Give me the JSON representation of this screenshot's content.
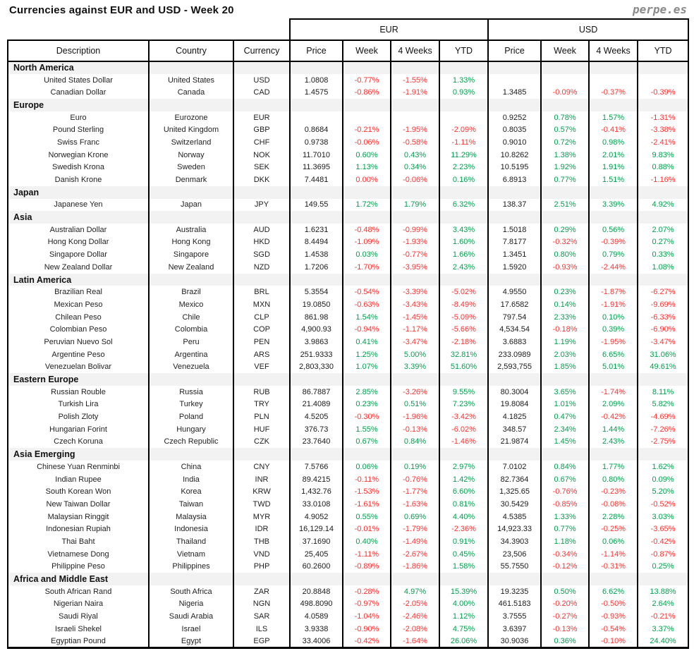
{
  "page": {
    "title": "Currencies against EUR and USD - Week 20",
    "logo": "perpe.es"
  },
  "colors": {
    "positive": "#00A04E",
    "negative": "#FF3232",
    "section_background": "#F2F2F2",
    "border": "#000000",
    "logo_gray": "#8a8a8a"
  },
  "table": {
    "group_headers": {
      "eur": "EUR",
      "usd": "USD"
    },
    "columns": {
      "description": "Description",
      "country": "Country",
      "currency": "Currency"
    },
    "sub_columns": [
      "Price",
      "Week",
      "4 Weeks",
      "YTD"
    ],
    "sections": [
      {
        "name": "North America",
        "rows": [
          {
            "description": "United States Dollar",
            "country": "United States",
            "currency": "USD",
            "eur": [
              "1.0808",
              "-0.77%",
              "-1.55%",
              "1.33%"
            ],
            "usd": [
              "",
              "",
              "",
              ""
            ]
          },
          {
            "description": "Canadian Dollar",
            "country": "Canada",
            "currency": "CAD",
            "eur": [
              "1.4575",
              "-0.86%",
              "-1.91%",
              "0.93%"
            ],
            "usd": [
              "1.3485",
              "-0.09%",
              "-0.37%",
              "-0.39%"
            ]
          }
        ]
      },
      {
        "name": "Europe",
        "rows": [
          {
            "description": "Euro",
            "country": "Eurozone",
            "currency": "EUR",
            "eur": [
              "",
              "",
              "",
              ""
            ],
            "usd": [
              "0.9252",
              "0.78%",
              "1.57%",
              "-1.31%"
            ]
          },
          {
            "description": "Pound Sterling",
            "country": "United Kingdom",
            "currency": "GBP",
            "eur": [
              "0.8684",
              "-0.21%",
              "-1.95%",
              "-2.09%"
            ],
            "usd": [
              "0.8035",
              "0.57%",
              "-0.41%",
              "-3.38%"
            ]
          },
          {
            "description": "Swiss Franc",
            "country": "Switzerland",
            "currency": "CHF",
            "eur": [
              "0.9738",
              "-0.06%",
              "-0.58%",
              "-1.11%"
            ],
            "usd": [
              "0.9010",
              "0.72%",
              "0.98%",
              "-2.41%"
            ]
          },
          {
            "description": "Norwegian Krone",
            "country": "Norway",
            "currency": "NOK",
            "eur": [
              "11.7010",
              "0.60%",
              "0.43%",
              "11.29%"
            ],
            "usd": [
              "10.8262",
              "1.38%",
              "2.01%",
              "9.83%"
            ]
          },
          {
            "description": "Swedish Krona",
            "country": "Sweden",
            "currency": "SEK",
            "eur": [
              "11.3695",
              "1.13%",
              "0.34%",
              "2.23%"
            ],
            "usd": [
              "10.5195",
              "1.92%",
              "1.91%",
              "0.88%"
            ]
          },
          {
            "description": "Danish Krone",
            "country": "Denmark",
            "currency": "DKK",
            "eur": [
              "7.4481",
              "0.00%",
              "-0.06%",
              "0.16%"
            ],
            "usd": [
              "6.8913",
              "0.77%",
              "1.51%",
              "-1.16%"
            ]
          }
        ]
      },
      {
        "name": "Japan",
        "rows": [
          {
            "description": "Japanese Yen",
            "country": "Japan",
            "currency": "JPY",
            "eur": [
              "149.55",
              "1.72%",
              "1.79%",
              "6.32%"
            ],
            "usd": [
              "138.37",
              "2.51%",
              "3.39%",
              "4.92%"
            ]
          }
        ]
      },
      {
        "name": "Asia",
        "rows": [
          {
            "description": "Australian Dollar",
            "country": "Australia",
            "currency": "AUD",
            "eur": [
              "1.6231",
              "-0.48%",
              "-0.99%",
              "3.43%"
            ],
            "usd": [
              "1.5018",
              "0.29%",
              "0.56%",
              "2.07%"
            ]
          },
          {
            "description": "Hong Kong Dollar",
            "country": "Hong Kong",
            "currency": "HKD",
            "eur": [
              "8.4494",
              "-1.09%",
              "-1.93%",
              "1.60%"
            ],
            "usd": [
              "7.8177",
              "-0.32%",
              "-0.39%",
              "0.27%"
            ]
          },
          {
            "description": "Singapore Dollar",
            "country": "Singapore",
            "currency": "SGD",
            "eur": [
              "1.4538",
              "0.03%",
              "-0.77%",
              "1.66%"
            ],
            "usd": [
              "1.3451",
              "0.80%",
              "0.79%",
              "0.33%"
            ]
          },
          {
            "description": "New Zealand Dollar",
            "country": "New Zealand",
            "currency": "NZD",
            "eur": [
              "1.7206",
              "-1.70%",
              "-3.95%",
              "2.43%"
            ],
            "usd": [
              "1.5920",
              "-0.93%",
              "-2.44%",
              "1.08%"
            ]
          }
        ]
      },
      {
        "name": "Latin America",
        "rows": [
          {
            "description": "Brazilian Real",
            "country": "Brazil",
            "currency": "BRL",
            "eur": [
              "5.3554",
              "-0.54%",
              "-3.39%",
              "-5.02%"
            ],
            "usd": [
              "4.9550",
              "0.23%",
              "-1.87%",
              "-6.27%"
            ]
          },
          {
            "description": "Mexican Peso",
            "country": "Mexico",
            "currency": "MXN",
            "eur": [
              "19.0850",
              "-0.63%",
              "-3.43%",
              "-8.49%"
            ],
            "usd": [
              "17.6582",
              "0.14%",
              "-1.91%",
              "-9.69%"
            ]
          },
          {
            "description": "Chilean Peso",
            "country": "Chile",
            "currency": "CLP",
            "eur": [
              "861.98",
              "1.54%",
              "-1.45%",
              "-5.09%"
            ],
            "usd": [
              "797.54",
              "2.33%",
              "0.10%",
              "-6.33%"
            ]
          },
          {
            "description": "Colombian Peso",
            "country": "Colombia",
            "currency": "COP",
            "eur": [
              "4,900.93",
              "-0.94%",
              "-1.17%",
              "-5.66%"
            ],
            "usd": [
              "4,534.54",
              "-0.18%",
              "0.39%",
              "-6.90%"
            ]
          },
          {
            "description": "Peruvian Nuevo Sol",
            "country": "Peru",
            "currency": "PEN",
            "eur": [
              "3.9863",
              "0.41%",
              "-3.47%",
              "-2.18%"
            ],
            "usd": [
              "3.6883",
              "1.19%",
              "-1.95%",
              "-3.47%"
            ]
          },
          {
            "description": "Argentine Peso",
            "country": "Argentina",
            "currency": "ARS",
            "eur": [
              "251.9333",
              "1.25%",
              "5.00%",
              "32.81%"
            ],
            "usd": [
              "233.0989",
              "2.03%",
              "6.65%",
              "31.06%"
            ]
          },
          {
            "description": "Venezuelan Bolivar",
            "country": "Venezuela",
            "currency": "VEF",
            "eur": [
              "2,803,330",
              "1.07%",
              "3.39%",
              "51.60%"
            ],
            "usd": [
              "2,593,755",
              "1.85%",
              "5.01%",
              "49.61%"
            ]
          }
        ]
      },
      {
        "name": "Eastern Europe",
        "rows": [
          {
            "description": "Russian Rouble",
            "country": "Russia",
            "currency": "RUB",
            "eur": [
              "86.7887",
              "2.85%",
              "-3.26%",
              "9.55%"
            ],
            "usd": [
              "80.3004",
              "3.65%",
              "-1.74%",
              "8.11%"
            ]
          },
          {
            "description": "Turkish Lira",
            "country": "Turkey",
            "currency": "TRY",
            "eur": [
              "21.4089",
              "0.23%",
              "0.51%",
              "7.23%"
            ],
            "usd": [
              "19.8084",
              "1.01%",
              "2.09%",
              "5.82%"
            ]
          },
          {
            "description": "Polish Zloty",
            "country": "Poland",
            "currency": "PLN",
            "eur": [
              "4.5205",
              "-0.30%",
              "-1.96%",
              "-3.42%"
            ],
            "usd": [
              "4.1825",
              "0.47%",
              "-0.42%",
              "-4.69%"
            ]
          },
          {
            "description": "Hungarian Forint",
            "country": "Hungary",
            "currency": "HUF",
            "eur": [
              "376.73",
              "1.55%",
              "-0.13%",
              "-6.02%"
            ],
            "usd": [
              "348.57",
              "2.34%",
              "1.44%",
              "-7.26%"
            ]
          },
          {
            "description": "Czech Koruna",
            "country": "Czech Republic",
            "currency": "CZK",
            "eur": [
              "23.7640",
              "0.67%",
              "0.84%",
              "-1.46%"
            ],
            "usd": [
              "21.9874",
              "1.45%",
              "2.43%",
              "-2.75%"
            ]
          }
        ]
      },
      {
        "name": "Asia Emerging",
        "rows": [
          {
            "description": "Chinese Yuan Renminbi",
            "country": "China",
            "currency": "CNY",
            "eur": [
              "7.5766",
              "0.06%",
              "0.19%",
              "2.97%"
            ],
            "usd": [
              "7.0102",
              "0.84%",
              "1.77%",
              "1.62%"
            ]
          },
          {
            "description": "Indian Rupee",
            "country": "India",
            "currency": "INR",
            "eur": [
              "89.4215",
              "-0.11%",
              "-0.76%",
              "1.42%"
            ],
            "usd": [
              "82.7364",
              "0.67%",
              "0.80%",
              "0.09%"
            ]
          },
          {
            "description": "South Korean Won",
            "country": "Korea",
            "currency": "KRW",
            "eur": [
              "1,432.76",
              "-1.53%",
              "-1.77%",
              "6.60%"
            ],
            "usd": [
              "1,325.65",
              "-0.76%",
              "-0.23%",
              "5.20%"
            ]
          },
          {
            "description": "New Taiwan Dollar",
            "country": "Taiwan",
            "currency": "TWD",
            "eur": [
              "33.0108",
              "-1.61%",
              "-1.63%",
              "0.81%"
            ],
            "usd": [
              "30.5429",
              "-0.85%",
              "-0.08%",
              "-0.52%"
            ]
          },
          {
            "description": "Malaysian Ringgit",
            "country": "Malaysia",
            "currency": "MYR",
            "eur": [
              "4.9052",
              "0.55%",
              "0.69%",
              "4.40%"
            ],
            "usd": [
              "4.5385",
              "1.33%",
              "2.28%",
              "3.03%"
            ]
          },
          {
            "description": "Indonesian Rupiah",
            "country": "Indonesia",
            "currency": "IDR",
            "eur": [
              "16,129.14",
              "-0.01%",
              "-1.79%",
              "-2.36%"
            ],
            "usd": [
              "14,923.33",
              "0.77%",
              "-0.25%",
              "-3.65%"
            ]
          },
          {
            "description": "Thai Baht",
            "country": "Thailand",
            "currency": "THB",
            "eur": [
              "37.1690",
              "0.40%",
              "-1.49%",
              "0.91%"
            ],
            "usd": [
              "34.3903",
              "1.18%",
              "0.06%",
              "-0.42%"
            ]
          },
          {
            "description": "Vietnamese Dong",
            "country": "Vietnam",
            "currency": "VND",
            "eur": [
              "25,405",
              "-1.11%",
              "-2.67%",
              "0.45%"
            ],
            "usd": [
              "23,506",
              "-0.34%",
              "-1.14%",
              "-0.87%"
            ]
          },
          {
            "description": "Philippine Peso",
            "country": "Philippines",
            "currency": "PHP",
            "eur": [
              "60.2600",
              "-0.89%",
              "-1.86%",
              "1.58%"
            ],
            "usd": [
              "55.7550",
              "-0.12%",
              "-0.31%",
              "0.25%"
            ]
          }
        ]
      },
      {
        "name": "Africa and Middle East",
        "rows": [
          {
            "description": "South African Rand",
            "country": "South Africa",
            "currency": "ZAR",
            "eur": [
              "20.8848",
              "-0.28%",
              "4.97%",
              "15.39%"
            ],
            "usd": [
              "19.3235",
              "0.50%",
              "6.62%",
              "13.88%"
            ]
          },
          {
            "description": "Nigerian Naira",
            "country": "Nigeria",
            "currency": "NGN",
            "eur": [
              "498.8090",
              "-0.97%",
              "-2.05%",
              "4.00%"
            ],
            "usd": [
              "461.5183",
              "-0.20%",
              "-0.50%",
              "2.64%"
            ]
          },
          {
            "description": "Saudi Riyal",
            "country": "Saudi Arabia",
            "currency": "SAR",
            "eur": [
              "4.0589",
              "-1.04%",
              "-2.46%",
              "1.12%"
            ],
            "usd": [
              "3.7555",
              "-0.27%",
              "-0.93%",
              "-0.21%"
            ]
          },
          {
            "description": "Israeli Shekel",
            "country": "Israel",
            "currency": "ILS",
            "eur": [
              "3.9338",
              "-0.90%",
              "-2.08%",
              "4.75%"
            ],
            "usd": [
              "3.6397",
              "-0.13%",
              "-0.54%",
              "3.37%"
            ]
          },
          {
            "description": "Egyptian Pound",
            "country": "Egypt",
            "currency": "EGP",
            "eur": [
              "33.4006",
              "-0.42%",
              "-1.64%",
              "26.06%"
            ],
            "usd": [
              "30.9036",
              "0.36%",
              "-0.10%",
              "24.40%"
            ]
          }
        ]
      }
    ]
  }
}
